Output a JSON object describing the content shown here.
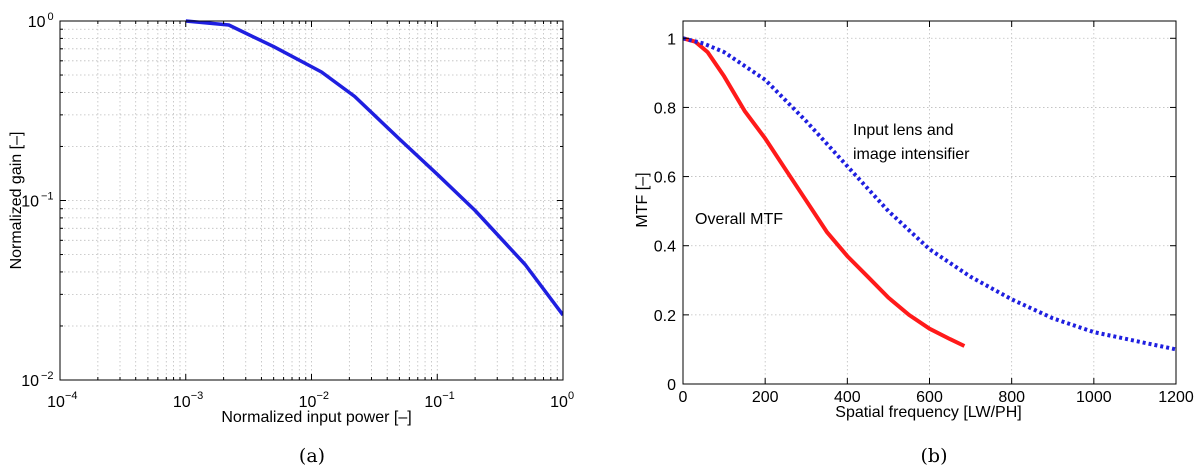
{
  "chart_data": [
    {
      "type": "line",
      "panel_label": "(a)",
      "xlabel": "Normalized input power [–]",
      "ylabel": "Normalized gain [–]",
      "xscale": "log",
      "yscale": "log",
      "xlim": [
        0.0001,
        1
      ],
      "ylim": [
        0.01,
        1
      ],
      "xticks": [
        {
          "base": "10",
          "exp": "−4"
        },
        {
          "base": "10",
          "exp": "−3"
        },
        {
          "base": "10",
          "exp": "−2"
        },
        {
          "base": "10",
          "exp": "−1"
        },
        {
          "base": "10",
          "exp": "0"
        }
      ],
      "yticks": [
        {
          "base": "10",
          "exp": "−2"
        },
        {
          "base": "10",
          "exp": "−1"
        },
        {
          "base": "10",
          "exp": "0"
        }
      ],
      "grid": true,
      "series": [
        {
          "color": "#1f1fe0",
          "style": "solid",
          "x": [
            0.001,
            0.0022,
            0.005,
            0.012,
            0.022,
            0.05,
            0.1,
            0.2,
            0.5,
            1.0
          ],
          "y": [
            1.0,
            0.95,
            0.72,
            0.52,
            0.38,
            0.22,
            0.14,
            0.088,
            0.044,
            0.023
          ]
        }
      ]
    },
    {
      "type": "line",
      "panel_label": "(b)",
      "xlabel": "Spatial frequency [LW/PH]",
      "ylabel": "MTF [–]",
      "xlim": [
        0,
        1200
      ],
      "ylim": [
        0,
        1.05
      ],
      "xticks": [
        "0",
        "200",
        "400",
        "600",
        "800",
        "1000",
        "1200"
      ],
      "yticks": [
        "0",
        "0.2",
        "0.4",
        "0.6",
        "0.8",
        "1"
      ],
      "grid": true,
      "series": [
        {
          "name": "Overall MTF",
          "color": "#ff1a1a",
          "style": "solid",
          "x": [
            0,
            30,
            60,
            100,
            150,
            200,
            250,
            300,
            350,
            400,
            450,
            500,
            550,
            600,
            650,
            685
          ],
          "y": [
            1.0,
            0.99,
            0.96,
            0.89,
            0.79,
            0.71,
            0.62,
            0.53,
            0.44,
            0.37,
            0.31,
            0.25,
            0.2,
            0.16,
            0.13,
            0.11
          ]
        },
        {
          "name": "Input lens and image intensifier",
          "color": "#1f1fe0",
          "style": "dotted",
          "x": [
            0,
            50,
            100,
            200,
            300,
            400,
            500,
            600,
            700,
            800,
            900,
            1000,
            1100,
            1200
          ],
          "y": [
            1.0,
            0.985,
            0.96,
            0.88,
            0.76,
            0.63,
            0.5,
            0.39,
            0.31,
            0.245,
            0.19,
            0.15,
            0.125,
            0.1
          ]
        }
      ]
    }
  ],
  "annotations": {
    "overall": "Overall MTF",
    "lens_line1": "Input lens and",
    "lens_line2": "image intensifier"
  }
}
